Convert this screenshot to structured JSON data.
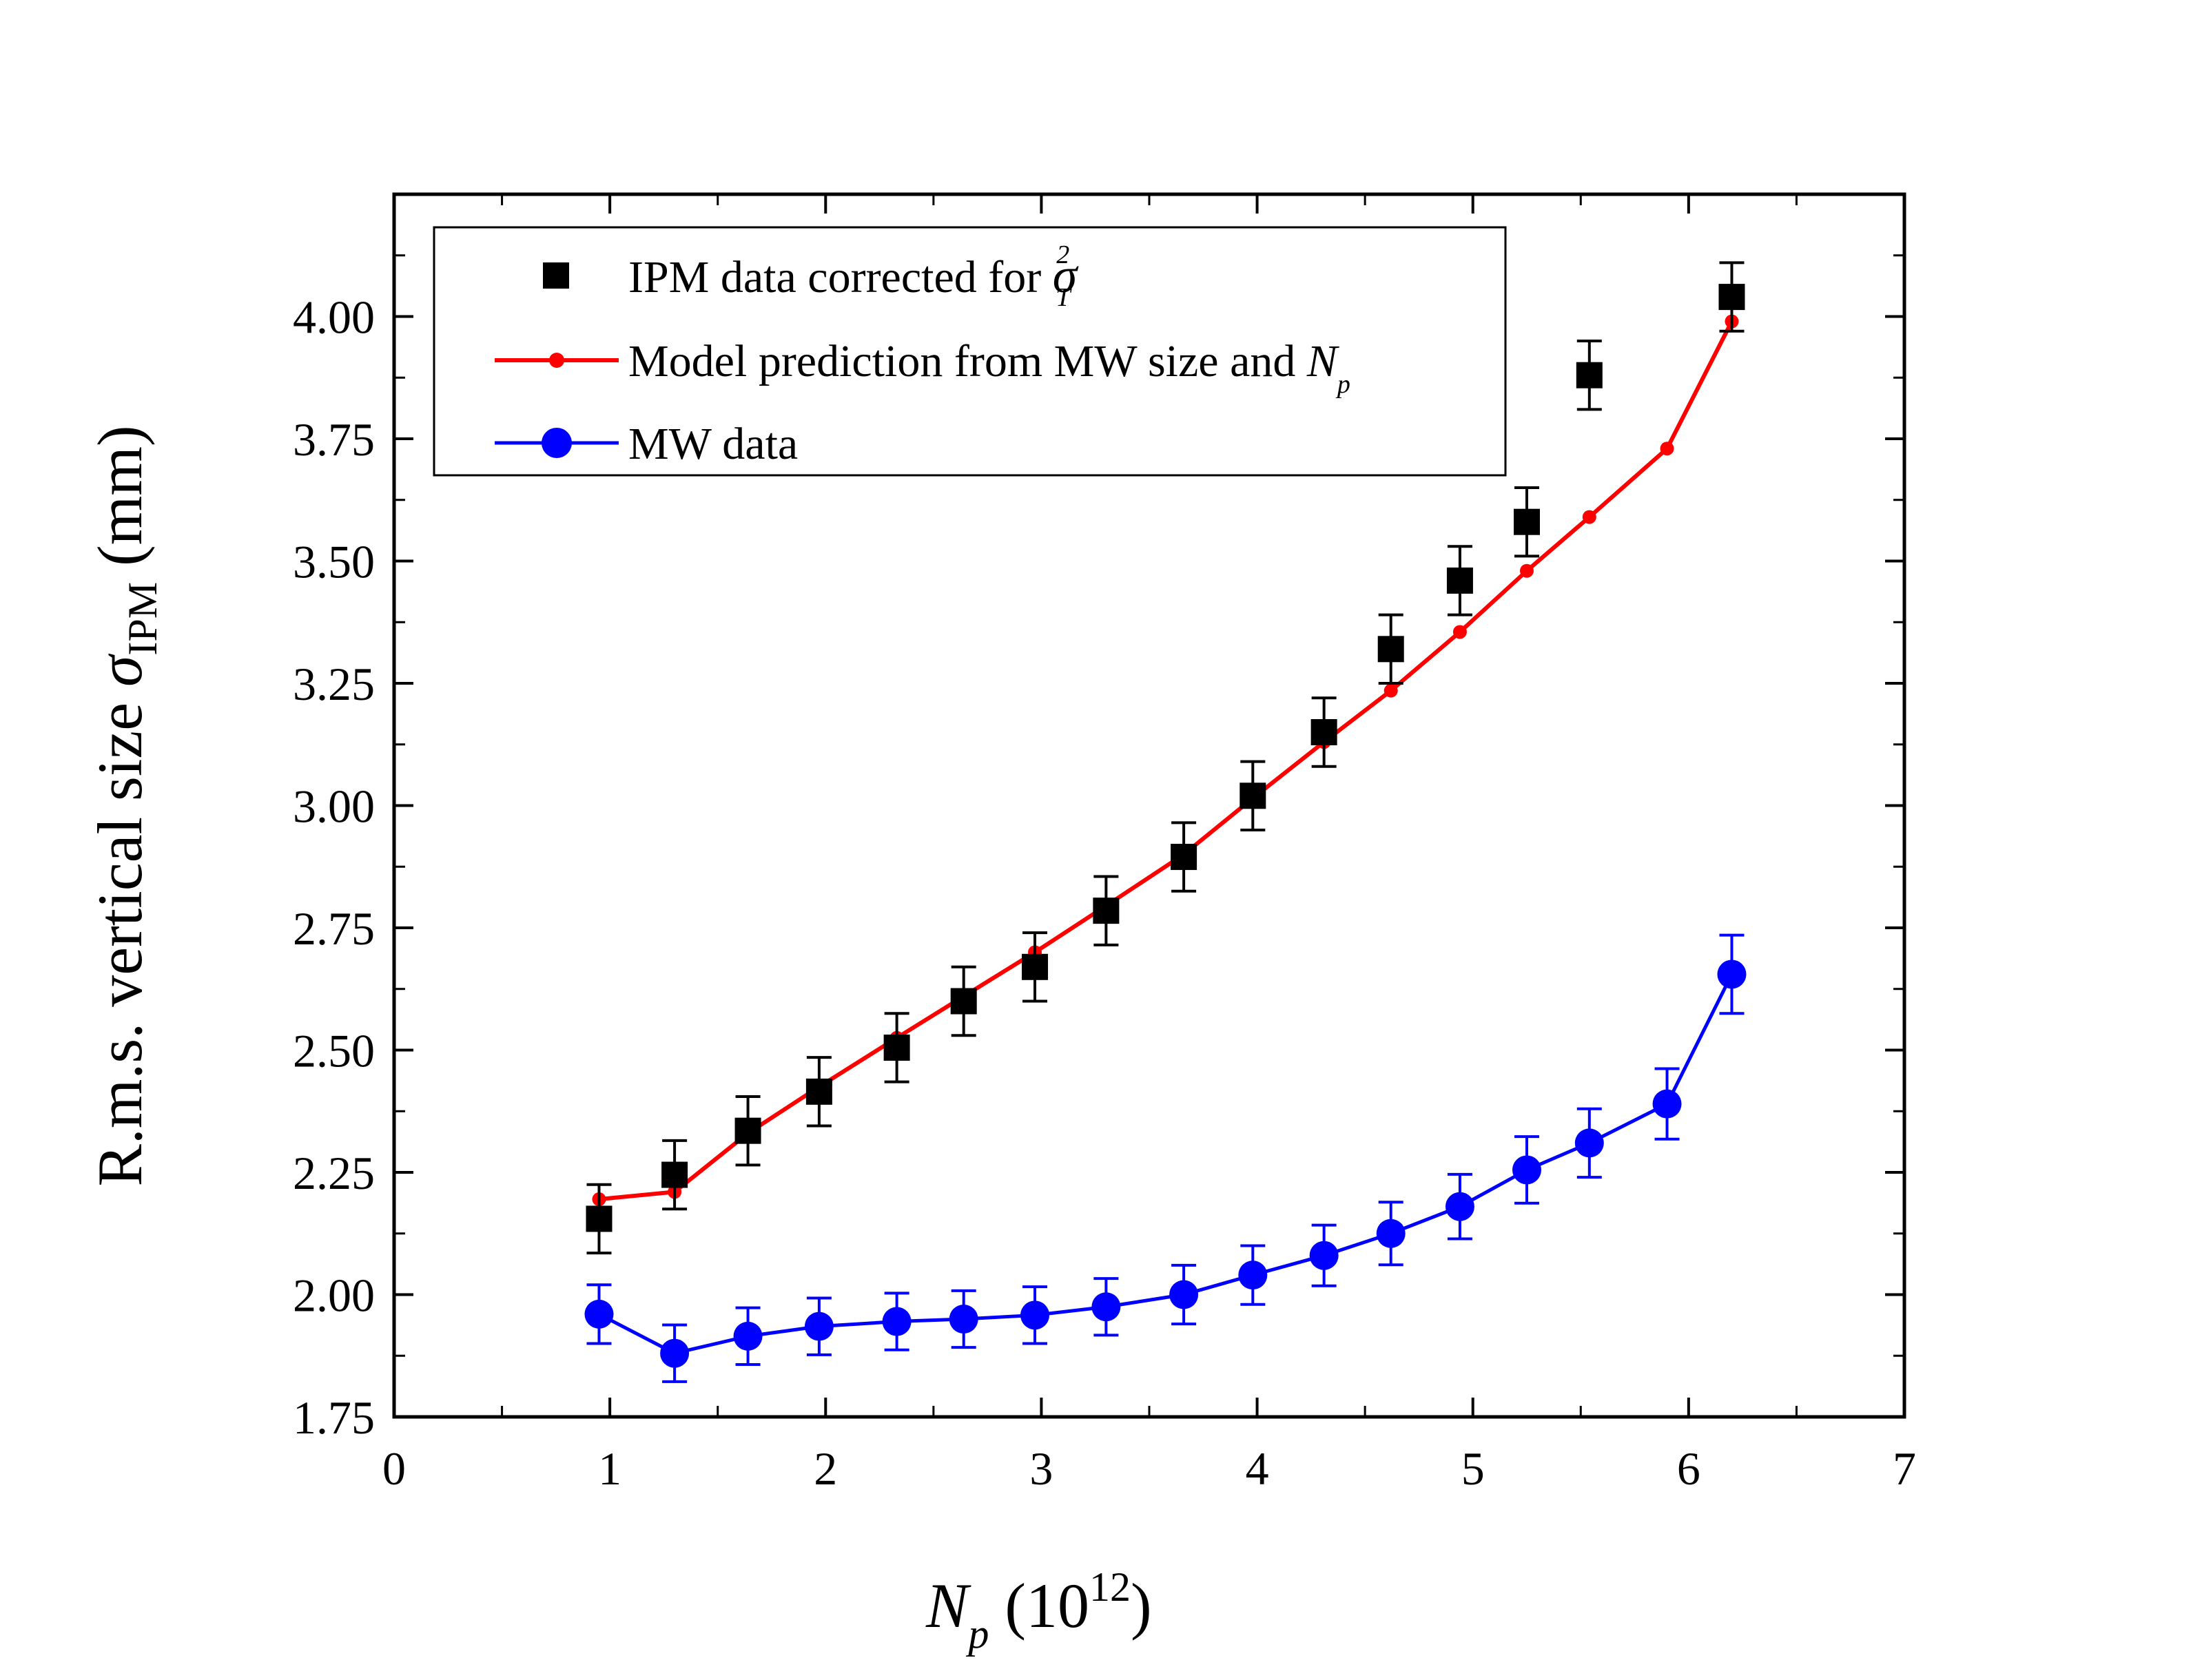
{
  "chart_data": {
    "type": "scatter",
    "xlabel": {
      "symbol": "N",
      "subscript": "p",
      "unit_prefix": " (10",
      "unit_exp": "12",
      "unit_suffix": ")"
    },
    "ylabel": {
      "text": "R.m.s. vertical size ",
      "symbol": "σ",
      "subscript": "IPM",
      "unit": " (mm)"
    },
    "xlim": [
      0,
      7
    ],
    "ylim": [
      1.75,
      4.25
    ],
    "x_ticks": [
      0,
      1,
      2,
      3,
      4,
      5,
      6,
      7
    ],
    "y_ticks": [
      "1.75",
      "2.00",
      "2.25",
      "2.50",
      "2.75",
      "3.00",
      "3.25",
      "3.50",
      "3.75",
      "4.00"
    ],
    "legend_placement": "top-left",
    "grid": false,
    "series": [
      {
        "name": "IPM data corrected for ",
        "name_symbol": "σ",
        "name_sub": "T",
        "name_sup": "2",
        "color": "#000000",
        "marker": "square",
        "line": false,
        "x": [
          0.95,
          1.3,
          1.64,
          1.97,
          2.33,
          2.64,
          2.97,
          3.3,
          3.66,
          3.98,
          4.31,
          4.62,
          4.94,
          5.25,
          5.54,
          6.2
        ],
        "y": [
          2.155,
          2.245,
          2.335,
          2.415,
          2.505,
          2.6,
          2.67,
          2.785,
          2.895,
          3.02,
          3.15,
          3.32,
          3.46,
          3.58,
          3.88,
          4.04
        ],
        "err": [
          0.07,
          0.07,
          0.07,
          0.07,
          0.07,
          0.07,
          0.07,
          0.07,
          0.07,
          0.07,
          0.07,
          0.07,
          0.07,
          0.07,
          0.07,
          0.07
        ]
      },
      {
        "name": "Model prediction from MW size and ",
        "name_symbol": "N",
        "name_sub": "p",
        "color": "#ff0000",
        "marker": "dot",
        "line": true,
        "x": [
          0.95,
          1.3,
          1.64,
          1.97,
          2.33,
          2.64,
          2.97,
          3.3,
          3.66,
          3.98,
          4.31,
          4.62,
          4.94,
          5.25,
          5.54,
          5.9,
          6.2
        ],
        "y": [
          2.195,
          2.21,
          2.33,
          2.425,
          2.525,
          2.61,
          2.7,
          2.795,
          2.9,
          3.015,
          3.13,
          3.235,
          3.355,
          3.48,
          3.59,
          3.73,
          3.99
        ]
      },
      {
        "name": "MW data",
        "color": "#0000ff",
        "marker": "circle",
        "line": true,
        "x": [
          0.95,
          1.3,
          1.64,
          1.97,
          2.33,
          2.64,
          2.97,
          3.3,
          3.66,
          3.98,
          4.31,
          4.62,
          4.94,
          5.25,
          5.54,
          5.9,
          6.2
        ],
        "y": [
          1.96,
          1.88,
          1.915,
          1.935,
          1.945,
          1.95,
          1.958,
          1.975,
          2.0,
          2.04,
          2.08,
          2.125,
          2.18,
          2.255,
          2.31,
          2.39,
          2.655
        ],
        "err": [
          0.06,
          0.058,
          0.058,
          0.058,
          0.058,
          0.058,
          0.058,
          0.058,
          0.06,
          0.06,
          0.062,
          0.064,
          0.066,
          0.068,
          0.07,
          0.072,
          0.08
        ]
      }
    ]
  }
}
